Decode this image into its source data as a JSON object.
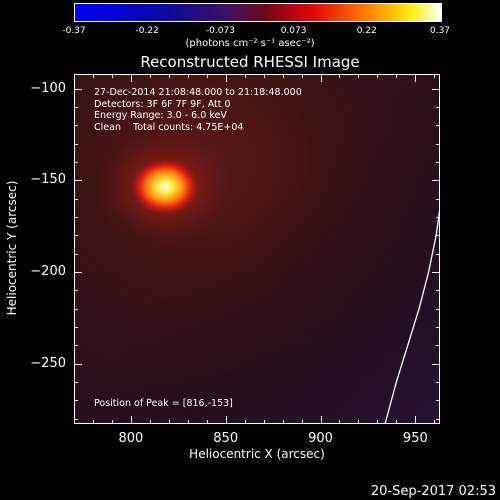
{
  "colorbar": {
    "ticks": [
      "-0.37",
      "-0.22",
      "-0.073",
      "0.073",
      "0.22",
      "0.37"
    ],
    "units": "(photons cm⁻² s⁻¹ asec⁻²)"
  },
  "title": "Reconstructed RHESSI Image",
  "annotation": {
    "time": "27-Dec-2014 21:08:48.000 to 21:18:48.000",
    "detectors": "Detectors: 3F 6F 7F 9F, Att 0",
    "energy": "Energy Range: 3.0 - 6.0 keV",
    "clean": "Clean    Total counts: 4.75E+04",
    "peak": "Position of Peak = [816,-153]"
  },
  "xlabel": "Heliocentric X (arcsec)",
  "ylabel": "Heliocentric Y (arcsec)",
  "timestamp": "20-Sep-2017 02:53",
  "chart_data": {
    "type": "heatmap",
    "title": "Reconstructed RHESSI Image",
    "xlabel": "Heliocentric X (arcsec)",
    "ylabel": "Heliocentric Y (arcsec)",
    "xlim": [
      770,
      963
    ],
    "ylim": [
      -283,
      -92
    ],
    "x_ticks": [
      "800",
      "850",
      "900",
      "950"
    ],
    "y_ticks": [
      "-100",
      "-150",
      "-200",
      "-250"
    ],
    "colorbar_range": [
      -0.37,
      0.37
    ],
    "peak_position": [
      816,
      -153
    ],
    "limb_curve": [
      [
        934,
        -283
      ],
      [
        940,
        -260
      ],
      [
        946,
        -240
      ],
      [
        952,
        -220
      ],
      [
        957,
        -200
      ],
      [
        961,
        -180
      ],
      [
        963,
        -165
      ]
    ],
    "colors": {
      "negative": "#0000ff",
      "zero": "#000000",
      "mid": "#ff2000",
      "high": "#ffff00",
      "max": "#ffffff"
    }
  }
}
